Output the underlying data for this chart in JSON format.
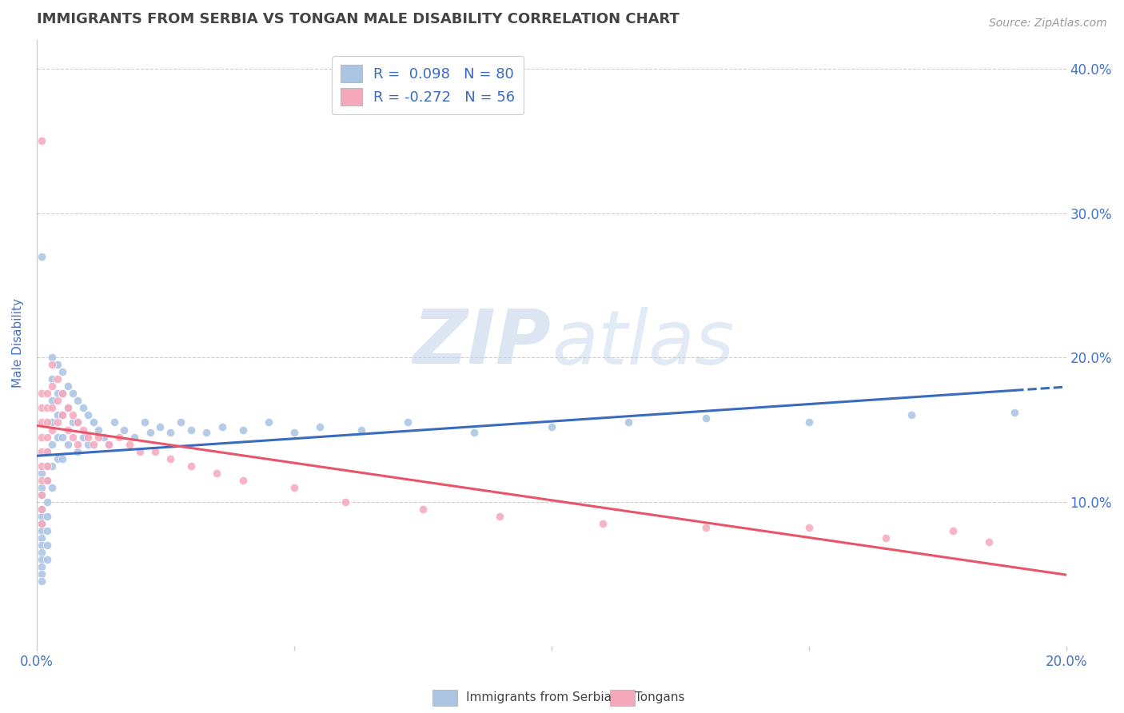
{
  "title": "IMMIGRANTS FROM SERBIA VS TONGAN MALE DISABILITY CORRELATION CHART",
  "source_text": "Source: ZipAtlas.com",
  "ylabel": "Male Disability",
  "xlim": [
    0.0,
    0.2
  ],
  "ylim": [
    0.0,
    0.42
  ],
  "yticks": [
    0.0,
    0.1,
    0.2,
    0.3,
    0.4
  ],
  "ytick_labels": [
    "",
    "10.0%",
    "20.0%",
    "30.0%",
    "40.0%"
  ],
  "xticks": [
    0.0,
    0.05,
    0.1,
    0.15,
    0.2
  ],
  "xtick_labels": [
    "0.0%",
    "",
    "",
    "",
    "20.0%"
  ],
  "serbia_R": 0.098,
  "serbia_N": 80,
  "tongan_R": -0.272,
  "tongan_N": 56,
  "serbia_color": "#aac4e2",
  "tongan_color": "#f5a8bc",
  "serbia_line_color": "#3a6bbf",
  "tongan_line_color": "#e8546a",
  "legend_text_color": "#3a6bbf",
  "title_color": "#444444",
  "axis_label_color": "#4472c4",
  "grid_color": "#cccccc",
  "watermark_zip": "ZIP",
  "watermark_atlas": "atlas",
  "serbia_x": [
    0.001,
    0.001,
    0.001,
    0.001,
    0.001,
    0.001,
    0.001,
    0.001,
    0.001,
    0.001,
    0.001,
    0.001,
    0.001,
    0.001,
    0.001,
    0.002,
    0.002,
    0.002,
    0.002,
    0.002,
    0.002,
    0.002,
    0.002,
    0.003,
    0.003,
    0.003,
    0.003,
    0.003,
    0.003,
    0.003,
    0.004,
    0.004,
    0.004,
    0.004,
    0.004,
    0.005,
    0.005,
    0.005,
    0.005,
    0.005,
    0.006,
    0.006,
    0.006,
    0.007,
    0.007,
    0.008,
    0.008,
    0.008,
    0.009,
    0.009,
    0.01,
    0.01,
    0.011,
    0.012,
    0.013,
    0.014,
    0.015,
    0.017,
    0.019,
    0.021,
    0.022,
    0.024,
    0.026,
    0.028,
    0.03,
    0.033,
    0.036,
    0.04,
    0.045,
    0.05,
    0.055,
    0.063,
    0.072,
    0.085,
    0.1,
    0.115,
    0.13,
    0.15,
    0.17,
    0.19
  ],
  "serbia_y": [
    0.27,
    0.12,
    0.11,
    0.105,
    0.095,
    0.09,
    0.085,
    0.08,
    0.075,
    0.07,
    0.065,
    0.06,
    0.055,
    0.05,
    0.045,
    0.135,
    0.125,
    0.115,
    0.1,
    0.09,
    0.08,
    0.07,
    0.06,
    0.2,
    0.185,
    0.17,
    0.155,
    0.14,
    0.125,
    0.11,
    0.195,
    0.175,
    0.16,
    0.145,
    0.13,
    0.19,
    0.175,
    0.16,
    0.145,
    0.13,
    0.18,
    0.165,
    0.14,
    0.175,
    0.155,
    0.17,
    0.155,
    0.135,
    0.165,
    0.145,
    0.16,
    0.14,
    0.155,
    0.15,
    0.145,
    0.14,
    0.155,
    0.15,
    0.145,
    0.155,
    0.148,
    0.152,
    0.148,
    0.155,
    0.15,
    0.148,
    0.152,
    0.15,
    0.155,
    0.148,
    0.152,
    0.15,
    0.155,
    0.148,
    0.152,
    0.155,
    0.158,
    0.155,
    0.16,
    0.162
  ],
  "tongan_x": [
    0.001,
    0.001,
    0.001,
    0.001,
    0.001,
    0.001,
    0.001,
    0.001,
    0.001,
    0.001,
    0.001,
    0.002,
    0.002,
    0.002,
    0.002,
    0.002,
    0.002,
    0.002,
    0.003,
    0.003,
    0.003,
    0.003,
    0.004,
    0.004,
    0.004,
    0.005,
    0.005,
    0.006,
    0.006,
    0.007,
    0.007,
    0.008,
    0.008,
    0.009,
    0.01,
    0.011,
    0.012,
    0.014,
    0.016,
    0.018,
    0.02,
    0.023,
    0.026,
    0.03,
    0.035,
    0.04,
    0.05,
    0.06,
    0.075,
    0.09,
    0.11,
    0.13,
    0.15,
    0.165,
    0.178,
    0.185
  ],
  "tongan_y": [
    0.35,
    0.175,
    0.165,
    0.155,
    0.145,
    0.135,
    0.125,
    0.115,
    0.105,
    0.095,
    0.085,
    0.175,
    0.165,
    0.155,
    0.145,
    0.135,
    0.125,
    0.115,
    0.195,
    0.18,
    0.165,
    0.15,
    0.185,
    0.17,
    0.155,
    0.175,
    0.16,
    0.165,
    0.15,
    0.16,
    0.145,
    0.155,
    0.14,
    0.15,
    0.145,
    0.14,
    0.145,
    0.14,
    0.145,
    0.14,
    0.135,
    0.135,
    0.13,
    0.125,
    0.12,
    0.115,
    0.11,
    0.1,
    0.095,
    0.09,
    0.085,
    0.082,
    0.082,
    0.075,
    0.08,
    0.072
  ]
}
